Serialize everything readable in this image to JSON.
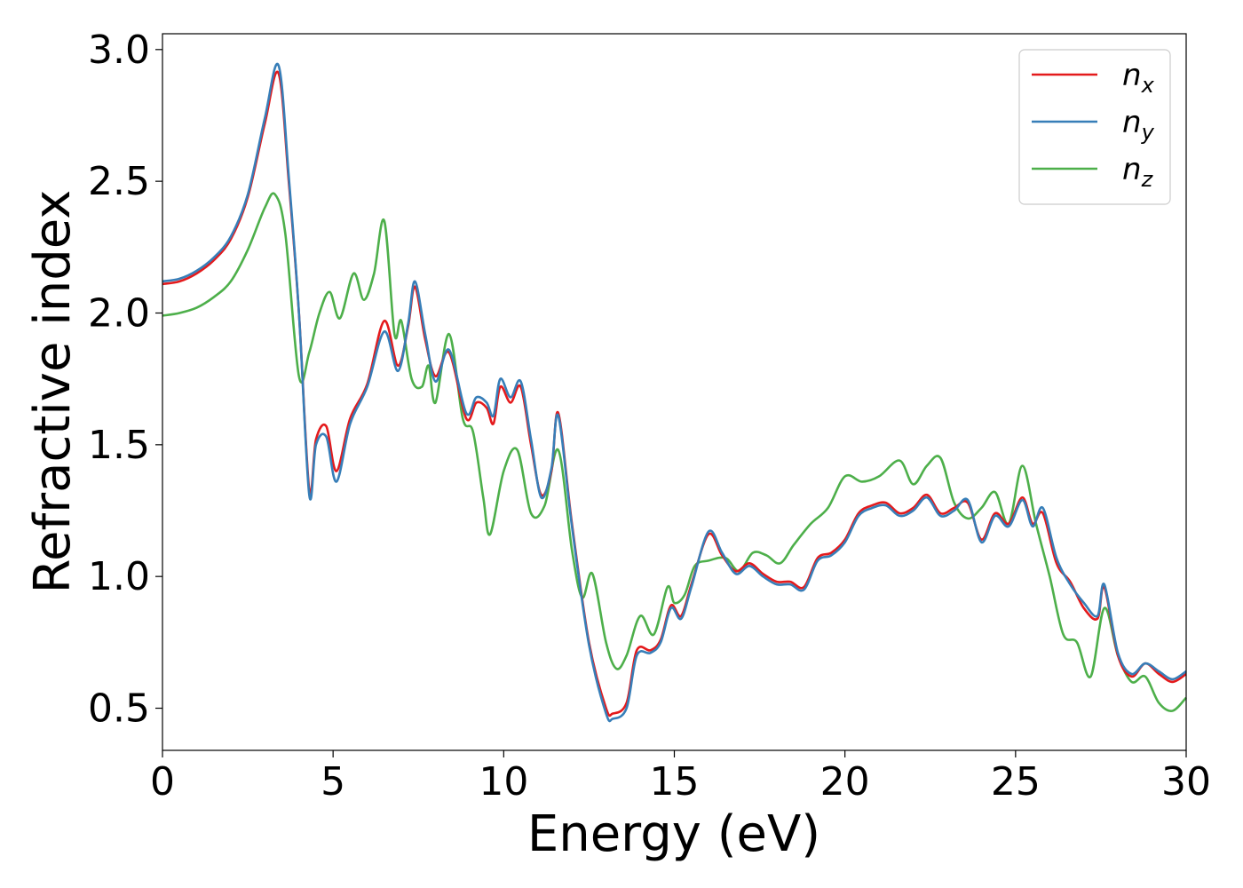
{
  "chart_data": {
    "type": "line",
    "title": "",
    "xlabel": "Energy (eV)",
    "ylabel": "Refractive index",
    "xlim": [
      0,
      30
    ],
    "ylim": [
      0.34,
      3.06
    ],
    "xticks": [
      0,
      5,
      10,
      15,
      20,
      25,
      30
    ],
    "yticks": [
      0.5,
      1.0,
      1.5,
      2.0,
      2.5,
      3.0
    ],
    "xtick_labels": [
      "0",
      "5",
      "10",
      "15",
      "20",
      "25",
      "30"
    ],
    "ytick_labels": [
      "0.5",
      "1.0",
      "1.5",
      "2.0",
      "2.5",
      "3.0"
    ],
    "grid": false,
    "legend_position": "top-right",
    "series": [
      {
        "name": "n_x",
        "label_base": "n",
        "label_sub": "x",
        "color": "#e41a1c",
        "points": [
          [
            0,
            2.11
          ],
          [
            0.5,
            2.12
          ],
          [
            1,
            2.15
          ],
          [
            1.5,
            2.2
          ],
          [
            2,
            2.28
          ],
          [
            2.5,
            2.44
          ],
          [
            3.0,
            2.72
          ],
          [
            3.4,
            2.91
          ],
          [
            3.7,
            2.5
          ],
          [
            4.0,
            2.0
          ],
          [
            4.3,
            1.33
          ],
          [
            4.5,
            1.52
          ],
          [
            4.8,
            1.57
          ],
          [
            5.1,
            1.4
          ],
          [
            5.5,
            1.6
          ],
          [
            6.0,
            1.73
          ],
          [
            6.5,
            1.97
          ],
          [
            6.9,
            1.8
          ],
          [
            7.2,
            1.95
          ],
          [
            7.4,
            2.1
          ],
          [
            7.7,
            1.9
          ],
          [
            8.0,
            1.76
          ],
          [
            8.4,
            1.85
          ],
          [
            8.9,
            1.6
          ],
          [
            9.2,
            1.66
          ],
          [
            9.5,
            1.64
          ],
          [
            9.7,
            1.58
          ],
          [
            9.9,
            1.72
          ],
          [
            10.2,
            1.66
          ],
          [
            10.5,
            1.72
          ],
          [
            10.8,
            1.5
          ],
          [
            11.1,
            1.31
          ],
          [
            11.4,
            1.4
          ],
          [
            11.6,
            1.62
          ],
          [
            12.0,
            1.2
          ],
          [
            12.5,
            0.75
          ],
          [
            13.0,
            0.5
          ],
          [
            13.2,
            0.48
          ],
          [
            13.6,
            0.52
          ],
          [
            13.9,
            0.72
          ],
          [
            14.3,
            0.72
          ],
          [
            14.6,
            0.76
          ],
          [
            14.9,
            0.89
          ],
          [
            15.2,
            0.85
          ],
          [
            15.5,
            0.97
          ],
          [
            16.0,
            1.16
          ],
          [
            16.4,
            1.08
          ],
          [
            16.8,
            1.02
          ],
          [
            17.2,
            1.05
          ],
          [
            17.6,
            1.01
          ],
          [
            18.0,
            0.98
          ],
          [
            18.4,
            0.98
          ],
          [
            18.8,
            0.96
          ],
          [
            19.2,
            1.07
          ],
          [
            19.6,
            1.09
          ],
          [
            20.0,
            1.14
          ],
          [
            20.4,
            1.24
          ],
          [
            20.8,
            1.27
          ],
          [
            21.2,
            1.28
          ],
          [
            21.6,
            1.24
          ],
          [
            22.0,
            1.26
          ],
          [
            22.4,
            1.31
          ],
          [
            22.8,
            1.24
          ],
          [
            23.2,
            1.26
          ],
          [
            23.6,
            1.28
          ],
          [
            24.0,
            1.14
          ],
          [
            24.4,
            1.24
          ],
          [
            24.8,
            1.2
          ],
          [
            25.2,
            1.3
          ],
          [
            25.5,
            1.2
          ],
          [
            25.8,
            1.24
          ],
          [
            26.2,
            1.05
          ],
          [
            26.6,
            0.98
          ],
          [
            27.0,
            0.88
          ],
          [
            27.4,
            0.84
          ],
          [
            27.6,
            0.96
          ],
          [
            28.0,
            0.7
          ],
          [
            28.4,
            0.62
          ],
          [
            28.8,
            0.67
          ],
          [
            29.2,
            0.63
          ],
          [
            29.6,
            0.6
          ],
          [
            30.0,
            0.63
          ]
        ]
      },
      {
        "name": "n_y",
        "label_base": "n",
        "label_sub": "y",
        "color": "#377eb8",
        "points": [
          [
            0,
            2.12
          ],
          [
            0.5,
            2.13
          ],
          [
            1,
            2.16
          ],
          [
            1.5,
            2.21
          ],
          [
            2,
            2.29
          ],
          [
            2.5,
            2.45
          ],
          [
            3.0,
            2.74
          ],
          [
            3.4,
            2.94
          ],
          [
            3.7,
            2.52
          ],
          [
            4.0,
            2.0
          ],
          [
            4.3,
            1.31
          ],
          [
            4.5,
            1.5
          ],
          [
            4.8,
            1.53
          ],
          [
            5.1,
            1.36
          ],
          [
            5.5,
            1.58
          ],
          [
            6.0,
            1.72
          ],
          [
            6.5,
            1.93
          ],
          [
            6.9,
            1.78
          ],
          [
            7.2,
            1.96
          ],
          [
            7.4,
            2.12
          ],
          [
            7.7,
            1.92
          ],
          [
            8.0,
            1.74
          ],
          [
            8.4,
            1.86
          ],
          [
            8.9,
            1.62
          ],
          [
            9.2,
            1.68
          ],
          [
            9.5,
            1.66
          ],
          [
            9.7,
            1.61
          ],
          [
            9.9,
            1.75
          ],
          [
            10.2,
            1.68
          ],
          [
            10.5,
            1.74
          ],
          [
            10.8,
            1.52
          ],
          [
            11.1,
            1.3
          ],
          [
            11.4,
            1.41
          ],
          [
            11.6,
            1.61
          ],
          [
            12.0,
            1.19
          ],
          [
            12.5,
            0.74
          ],
          [
            13.0,
            0.48
          ],
          [
            13.2,
            0.46
          ],
          [
            13.6,
            0.5
          ],
          [
            13.9,
            0.7
          ],
          [
            14.3,
            0.71
          ],
          [
            14.6,
            0.75
          ],
          [
            14.9,
            0.88
          ],
          [
            15.2,
            0.84
          ],
          [
            15.5,
            0.96
          ],
          [
            16.0,
            1.17
          ],
          [
            16.4,
            1.09
          ],
          [
            16.8,
            1.01
          ],
          [
            17.2,
            1.04
          ],
          [
            17.6,
            1.0
          ],
          [
            18.0,
            0.97
          ],
          [
            18.4,
            0.97
          ],
          [
            18.8,
            0.95
          ],
          [
            19.2,
            1.06
          ],
          [
            19.6,
            1.08
          ],
          [
            20.0,
            1.13
          ],
          [
            20.4,
            1.23
          ],
          [
            20.8,
            1.26
          ],
          [
            21.2,
            1.27
          ],
          [
            21.6,
            1.23
          ],
          [
            22.0,
            1.25
          ],
          [
            22.4,
            1.3
          ],
          [
            22.8,
            1.23
          ],
          [
            23.2,
            1.25
          ],
          [
            23.6,
            1.29
          ],
          [
            24.0,
            1.13
          ],
          [
            24.4,
            1.23
          ],
          [
            24.8,
            1.19
          ],
          [
            25.2,
            1.29
          ],
          [
            25.5,
            1.19
          ],
          [
            25.8,
            1.26
          ],
          [
            26.2,
            1.07
          ],
          [
            26.6,
            0.97
          ],
          [
            27.0,
            0.9
          ],
          [
            27.4,
            0.85
          ],
          [
            27.6,
            0.97
          ],
          [
            28.0,
            0.71
          ],
          [
            28.4,
            0.63
          ],
          [
            28.8,
            0.67
          ],
          [
            29.2,
            0.64
          ],
          [
            29.6,
            0.61
          ],
          [
            30.0,
            0.64
          ]
        ]
      },
      {
        "name": "n_z",
        "label_base": "n",
        "label_sub": "z",
        "color": "#4daf4a",
        "points": [
          [
            0,
            1.99
          ],
          [
            0.5,
            2.0
          ],
          [
            1,
            2.02
          ],
          [
            1.5,
            2.06
          ],
          [
            2,
            2.12
          ],
          [
            2.5,
            2.24
          ],
          [
            3.0,
            2.4
          ],
          [
            3.3,
            2.45
          ],
          [
            3.6,
            2.3
          ],
          [
            4.0,
            1.76
          ],
          [
            4.3,
            1.85
          ],
          [
            4.6,
            2.0
          ],
          [
            4.9,
            2.08
          ],
          [
            5.2,
            1.98
          ],
          [
            5.6,
            2.15
          ],
          [
            5.9,
            2.05
          ],
          [
            6.2,
            2.15
          ],
          [
            6.5,
            2.35
          ],
          [
            6.8,
            1.92
          ],
          [
            7.0,
            1.97
          ],
          [
            7.3,
            1.75
          ],
          [
            7.6,
            1.72
          ],
          [
            7.8,
            1.8
          ],
          [
            8.0,
            1.66
          ],
          [
            8.4,
            1.92
          ],
          [
            8.8,
            1.6
          ],
          [
            9.1,
            1.55
          ],
          [
            9.4,
            1.3
          ],
          [
            9.6,
            1.16
          ],
          [
            10.0,
            1.4
          ],
          [
            10.4,
            1.48
          ],
          [
            10.8,
            1.24
          ],
          [
            11.2,
            1.27
          ],
          [
            11.6,
            1.48
          ],
          [
            12.0,
            1.1
          ],
          [
            12.3,
            0.92
          ],
          [
            12.6,
            1.01
          ],
          [
            13.0,
            0.75
          ],
          [
            13.3,
            0.65
          ],
          [
            13.6,
            0.7
          ],
          [
            14.0,
            0.85
          ],
          [
            14.4,
            0.78
          ],
          [
            14.8,
            0.96
          ],
          [
            15.0,
            0.9
          ],
          [
            15.3,
            0.93
          ],
          [
            15.6,
            1.04
          ],
          [
            16.0,
            1.06
          ],
          [
            16.5,
            1.07
          ],
          [
            16.9,
            1.02
          ],
          [
            17.3,
            1.09
          ],
          [
            17.7,
            1.08
          ],
          [
            18.1,
            1.05
          ],
          [
            18.5,
            1.12
          ],
          [
            19.0,
            1.2
          ],
          [
            19.5,
            1.26
          ],
          [
            20.0,
            1.38
          ],
          [
            20.5,
            1.36
          ],
          [
            21.0,
            1.38
          ],
          [
            21.6,
            1.44
          ],
          [
            22.0,
            1.35
          ],
          [
            22.4,
            1.42
          ],
          [
            22.8,
            1.45
          ],
          [
            23.2,
            1.28
          ],
          [
            23.6,
            1.22
          ],
          [
            24.0,
            1.26
          ],
          [
            24.4,
            1.32
          ],
          [
            24.8,
            1.2
          ],
          [
            25.2,
            1.42
          ],
          [
            25.6,
            1.2
          ],
          [
            26.0,
            1.0
          ],
          [
            26.4,
            0.78
          ],
          [
            26.8,
            0.75
          ],
          [
            27.2,
            0.62
          ],
          [
            27.6,
            0.88
          ],
          [
            28.0,
            0.7
          ],
          [
            28.4,
            0.6
          ],
          [
            28.8,
            0.62
          ],
          [
            29.2,
            0.52
          ],
          [
            29.6,
            0.49
          ],
          [
            30.0,
            0.54
          ]
        ]
      }
    ]
  }
}
